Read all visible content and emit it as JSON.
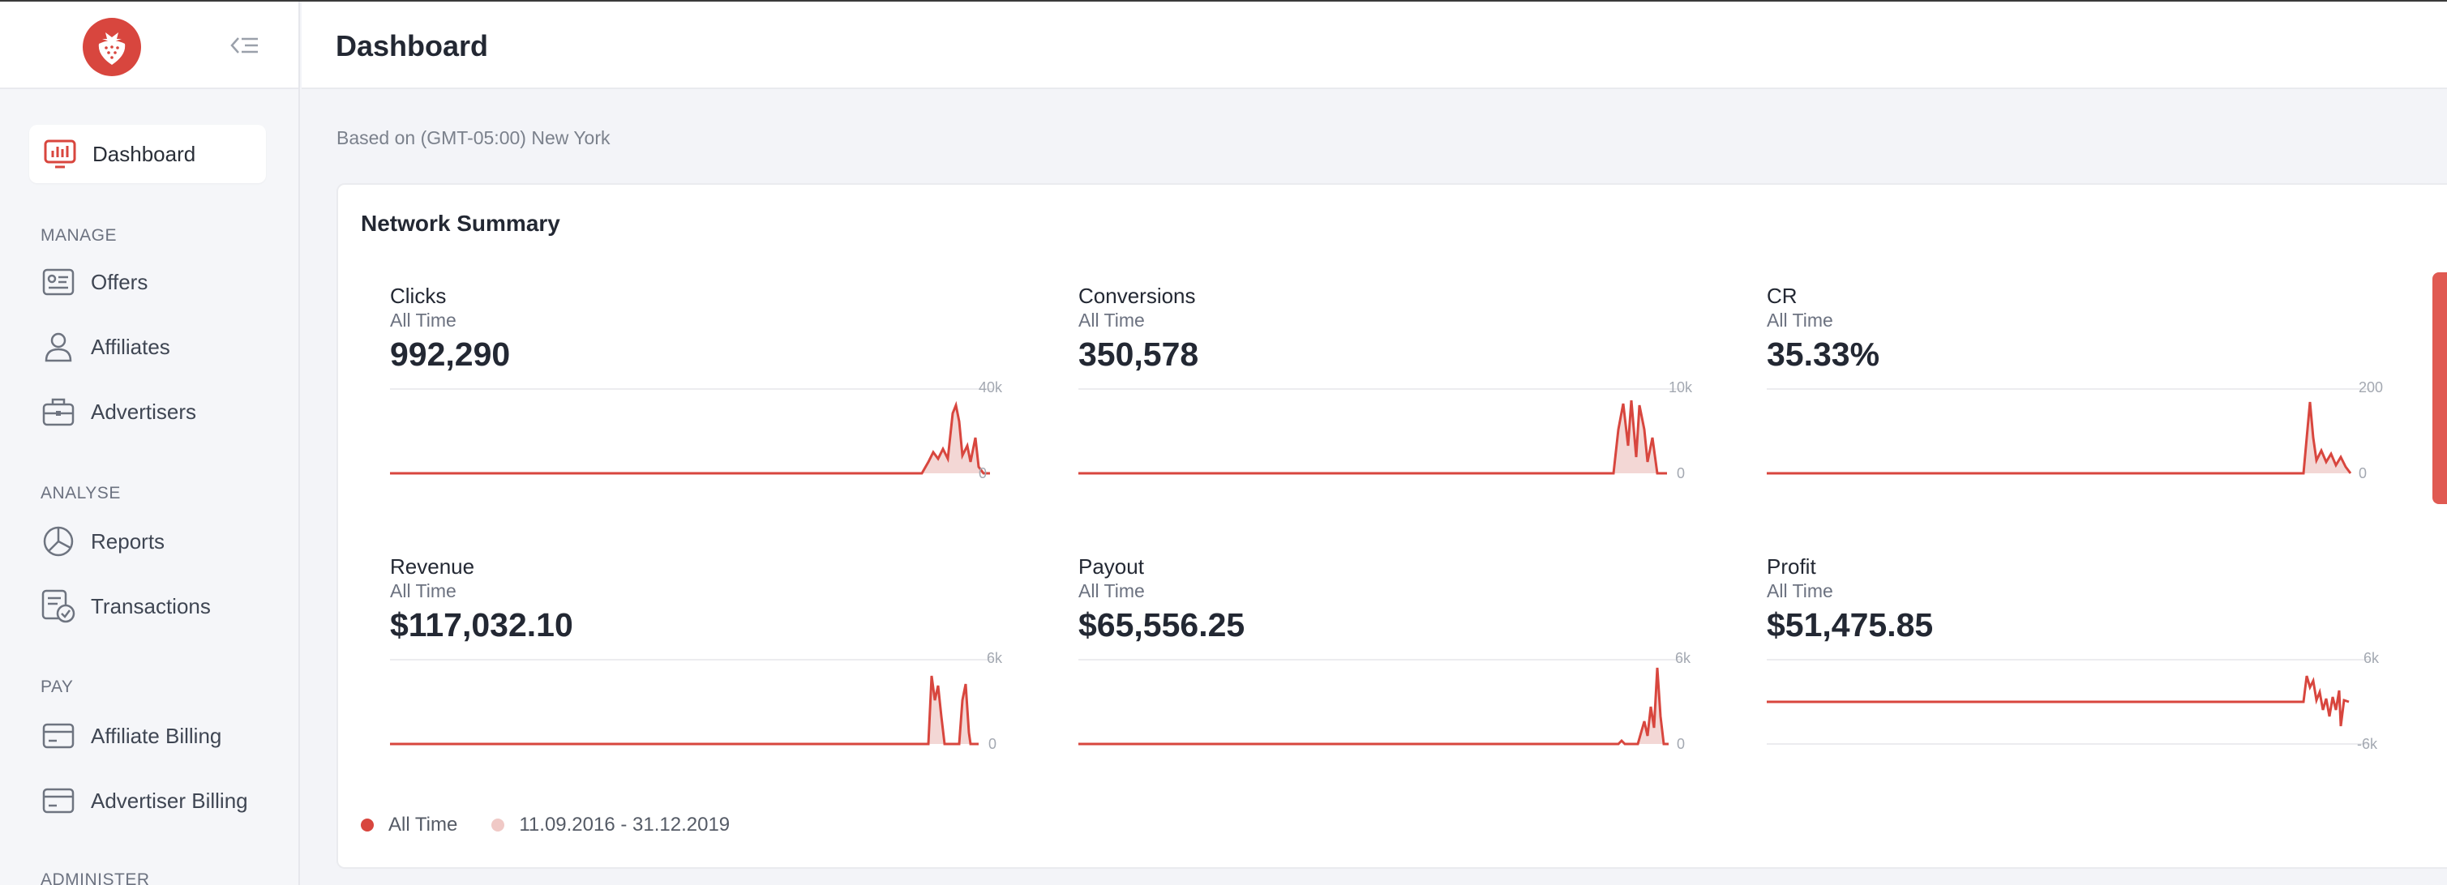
{
  "app": {
    "page_title": "Dashboard",
    "accent": "#d8463e"
  },
  "sidebar": {
    "active": {
      "label": "Dashboard",
      "icon": "dashboard-icon"
    },
    "sections": [
      {
        "label": "MANAGE",
        "items": [
          {
            "label": "Offers",
            "icon": "offers-icon"
          },
          {
            "label": "Affiliates",
            "icon": "user-icon"
          },
          {
            "label": "Advertisers",
            "icon": "briefcase-icon"
          }
        ]
      },
      {
        "label": "ANALYSE",
        "items": [
          {
            "label": "Reports",
            "icon": "pie-chart-icon"
          },
          {
            "label": "Transactions",
            "icon": "transactions-icon"
          }
        ]
      },
      {
        "label": "PAY",
        "items": [
          {
            "label": "Affiliate Billing",
            "icon": "card-icon"
          },
          {
            "label": "Advertiser Billing",
            "icon": "card-icon"
          }
        ]
      },
      {
        "label": "ADMINISTER",
        "items": []
      }
    ]
  },
  "timezone_note": "Based on (GMT-05:00) New York",
  "summary": {
    "title": "Network Summary",
    "metrics": [
      {
        "name": "Clicks",
        "period": "All Time",
        "value": "992,290",
        "axis_top": "40k",
        "axis_bottom": "0"
      },
      {
        "name": "Conversions",
        "period": "All Time",
        "value": "350,578",
        "axis_top": "10k",
        "axis_bottom": "0"
      },
      {
        "name": "CR",
        "period": "All Time",
        "value": "35.33%",
        "axis_top": "200",
        "axis_bottom": "0"
      },
      {
        "name": "Revenue",
        "period": "All Time",
        "value": "$117,032.10",
        "axis_top": "6k",
        "axis_bottom": "0"
      },
      {
        "name": "Payout",
        "period": "All Time",
        "value": "$65,556.25",
        "axis_top": "6k",
        "axis_bottom": "0"
      },
      {
        "name": "Profit",
        "period": "All Time",
        "value": "$51,475.85",
        "axis_top": "6k",
        "axis_bottom": "-6k"
      }
    ],
    "legend": [
      {
        "label": "All Time",
        "color": "#d8463e"
      },
      {
        "label": "11.09.2016 - 31.12.2019",
        "color": "#f0c9c6"
      }
    ]
  }
}
